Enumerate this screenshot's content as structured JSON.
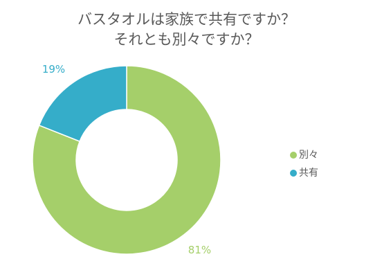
{
  "chart_data": {
    "type": "pie",
    "variant": "donut",
    "title_lines": [
      "バスタオルは家族で共有ですか？",
      "それとも別々ですか？"
    ],
    "slices": [
      {
        "label": "別々",
        "value": 81,
        "value_label": "81%",
        "color": "#a5cf6a"
      },
      {
        "label": "共有",
        "value": 19,
        "value_label": "19%",
        "color": "#35adc9"
      }
    ],
    "legend_placement": "right"
  }
}
